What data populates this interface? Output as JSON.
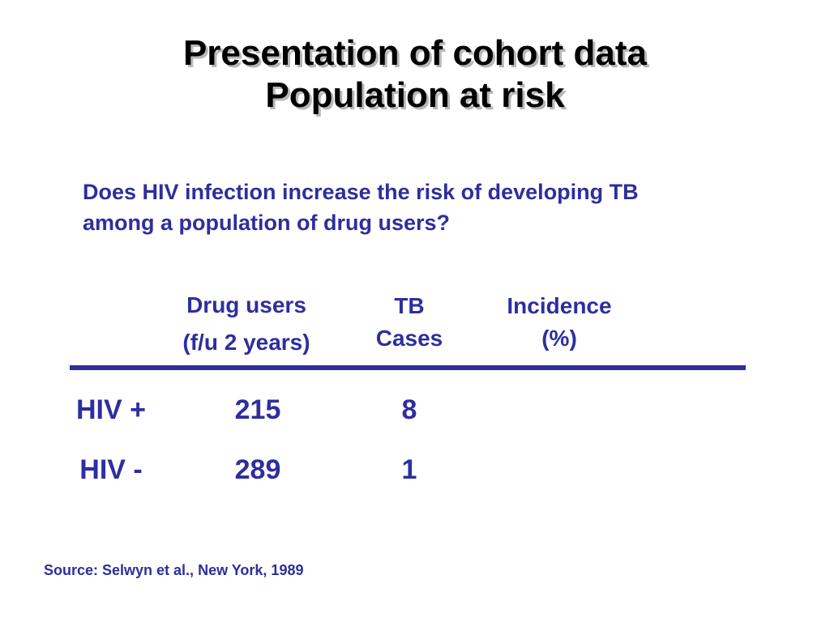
{
  "title": {
    "line1": "Presentation of cohort data",
    "line2": "Population at risk"
  },
  "question": {
    "line1": "Does HIV infection increase the risk of developing TB",
    "line2": "among a population of drug users?"
  },
  "table": {
    "headers": {
      "drug_users": {
        "line1": "Drug users",
        "line2": "(f/u 2 years)"
      },
      "tb_cases": {
        "line1": "TB",
        "line2": "Cases"
      },
      "incidence": {
        "line1": "Incidence",
        "line2": "(%)"
      }
    },
    "rows": [
      {
        "label": "HIV +",
        "drug_users": "215",
        "tb_cases": "8",
        "incidence": ""
      },
      {
        "label": "HIV -",
        "drug_users": "289",
        "tb_cases": "1",
        "incidence": ""
      }
    ]
  },
  "source": "Source: Selwyn et al., New York, 1989",
  "colors": {
    "text_blue": "#2e2e9e",
    "title_black": "#000000",
    "title_shadow": "#b8b8b8",
    "background": "#ffffff"
  }
}
